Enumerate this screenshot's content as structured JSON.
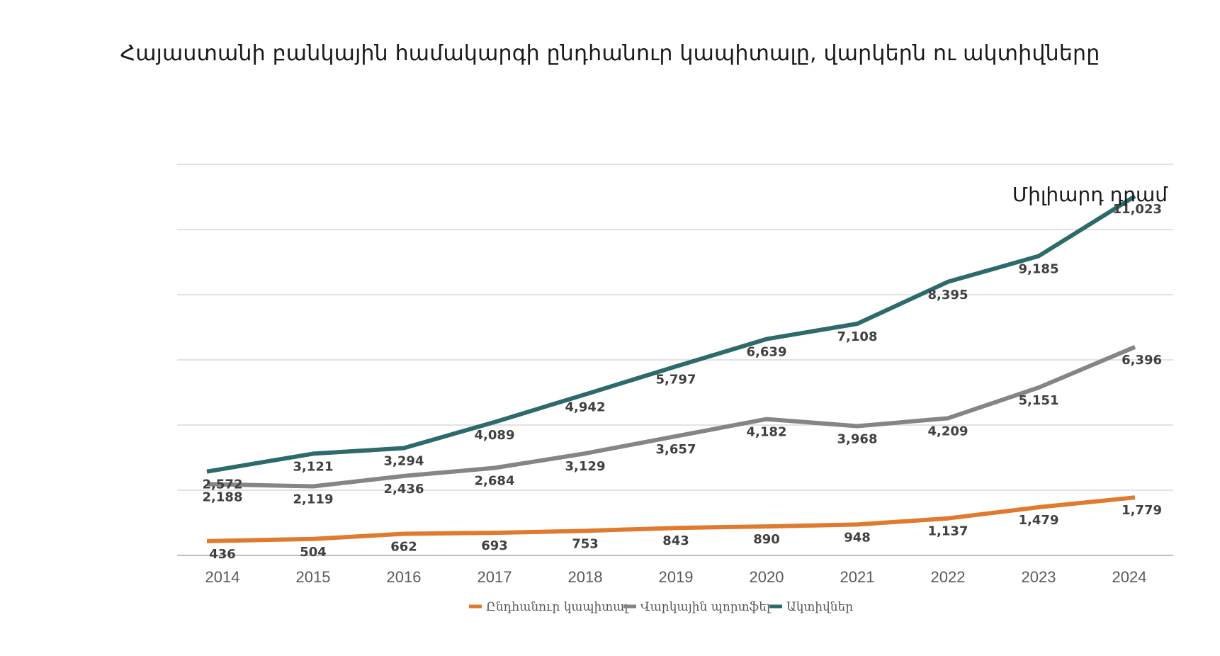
{
  "chart_data": {
    "type": "line",
    "title": "Հայաստանի բանկային համակարգի ընդհանուր կապիտալը, վարկերն ու ակտիվները",
    "unit_label": "Միլիարդ դրամ",
    "categories": [
      "2014",
      "2015",
      "2016",
      "2017",
      "2018",
      "2019",
      "2020",
      "2021",
      "2022",
      "2023",
      "2024"
    ],
    "ylim": [
      0,
      12000
    ],
    "grid": true,
    "legend_position": "bottom",
    "series": [
      {
        "key": "capital",
        "name": "Ընդհանուր կապիտալ",
        "color": "#E07A2F",
        "values": [
          436,
          504,
          662,
          693,
          753,
          843,
          890,
          948,
          1137,
          1479,
          1779
        ],
        "labels": [
          "436",
          "504",
          "662",
          "693",
          "753",
          "843",
          "890",
          "948",
          "1,137",
          "1,479",
          "1,779"
        ]
      },
      {
        "key": "loans",
        "name": "Վարկային պորտֆել",
        "color": "#858585",
        "values": [
          2188,
          2119,
          2436,
          2684,
          3129,
          3657,
          4182,
          3968,
          4209,
          5151,
          6396
        ],
        "labels": [
          "2,188",
          "2,119",
          "2,436",
          "2,684",
          "3,129",
          "3,657",
          "4,182",
          "3,968",
          "4,209",
          "5,151",
          "6,396"
        ]
      },
      {
        "key": "assets",
        "name": "Ակտիվներ",
        "color": "#2D6A6B",
        "values": [
          2572,
          3121,
          3294,
          4089,
          4942,
          5797,
          6639,
          7108,
          8395,
          9185,
          11023
        ],
        "labels": [
          "2,572",
          "3,121",
          "3,294",
          "4,089",
          "4,942",
          "5,797",
          "6,639",
          "7,108",
          "8,395",
          "9,185",
          "11,023"
        ]
      }
    ]
  }
}
